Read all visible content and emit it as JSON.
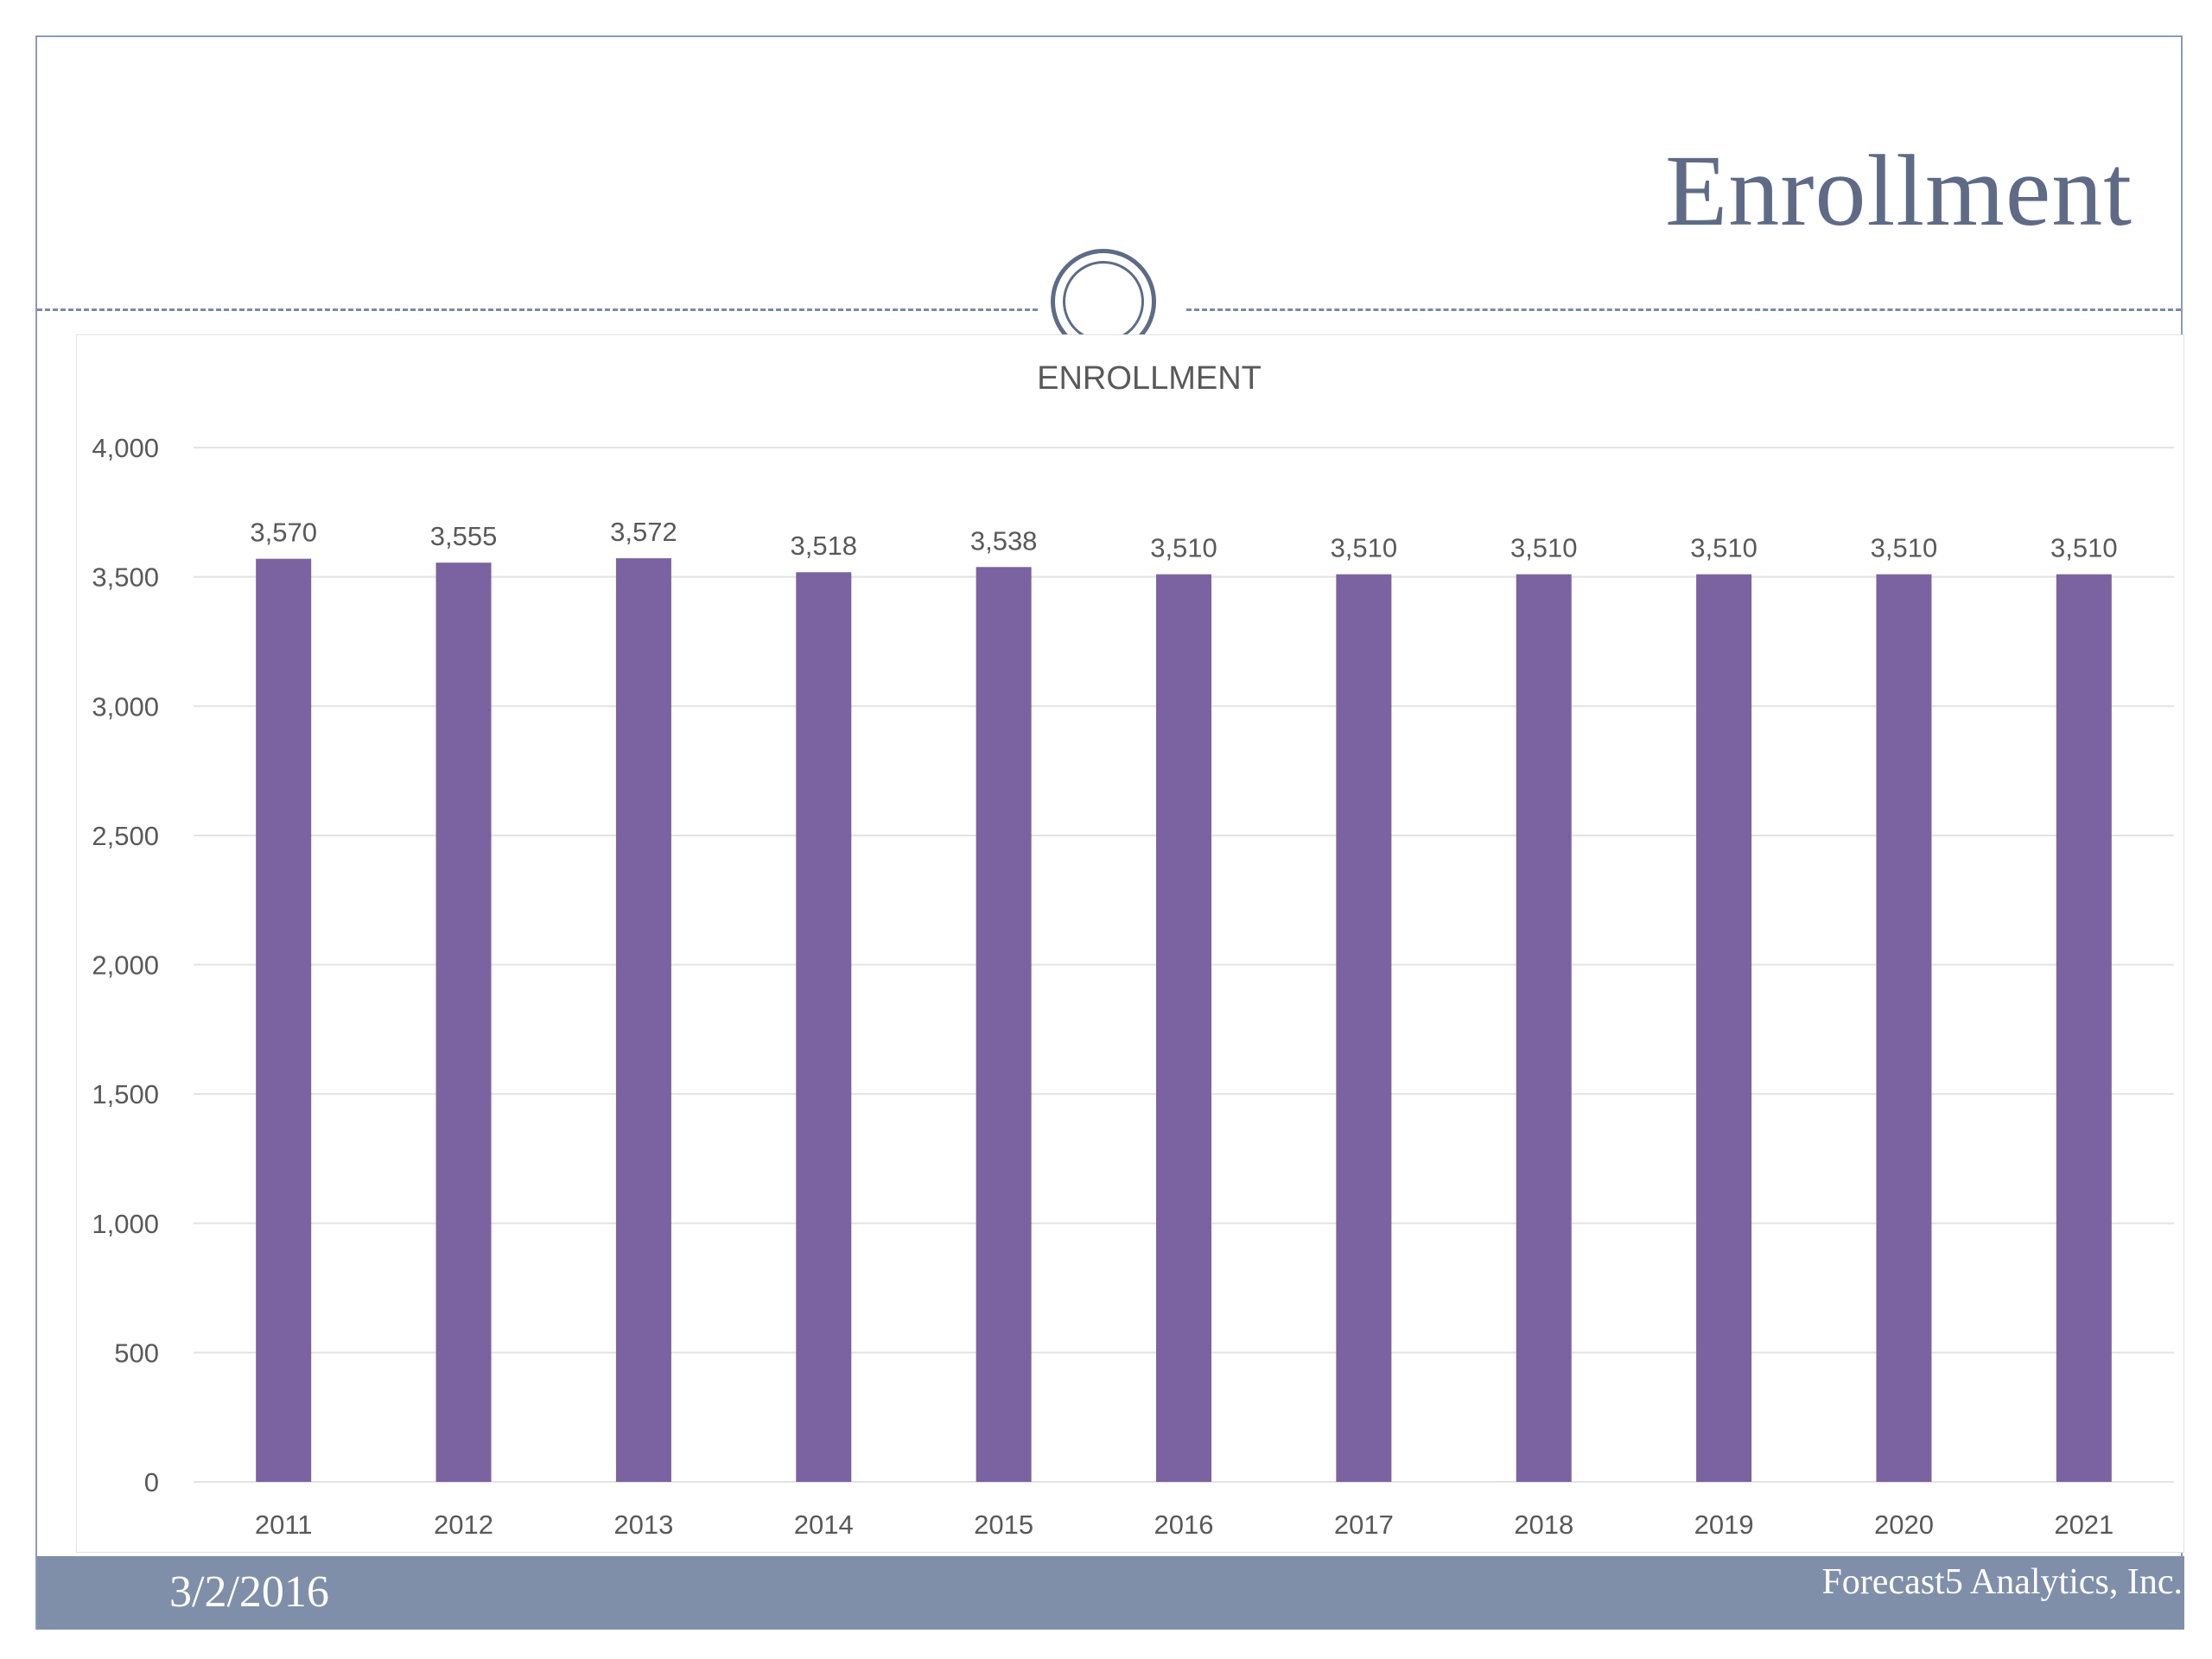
{
  "slide": {
    "title": "Enrollment",
    "footer_date": "3/2/2016",
    "footer_company": "Forecast5 Analytics, Inc."
  },
  "colors": {
    "bar": "#7b62a1",
    "title": "#5f6b86",
    "footer_bar": "#7f8fa9",
    "gridline": "#e3e3e3",
    "axis_text": "#595959"
  },
  "chart_data": {
    "type": "bar",
    "title": "ENROLLMENT",
    "xlabel": "",
    "ylabel": "",
    "categories": [
      "2011",
      "2012",
      "2013",
      "2014",
      "2015",
      "2016",
      "2017",
      "2018",
      "2019",
      "2020",
      "2021"
    ],
    "values": [
      3570,
      3555,
      3572,
      3518,
      3538,
      3510,
      3510,
      3510,
      3510,
      3510,
      3510
    ],
    "data_labels": [
      "3,570",
      "3,555",
      "3,572",
      "3,518",
      "3,538",
      "3,510",
      "3,510",
      "3,510",
      "3,510",
      "3,510",
      "3,510"
    ],
    "ylim": [
      0,
      4000
    ],
    "yticks": [
      0,
      500,
      1000,
      1500,
      2000,
      2500,
      3000,
      3500,
      4000
    ],
    "ytick_labels": [
      "0",
      "500",
      "1,000",
      "1,500",
      "2,000",
      "2,500",
      "3,000",
      "3,500",
      "4,000"
    ],
    "grid": true,
    "legend": "none"
  }
}
